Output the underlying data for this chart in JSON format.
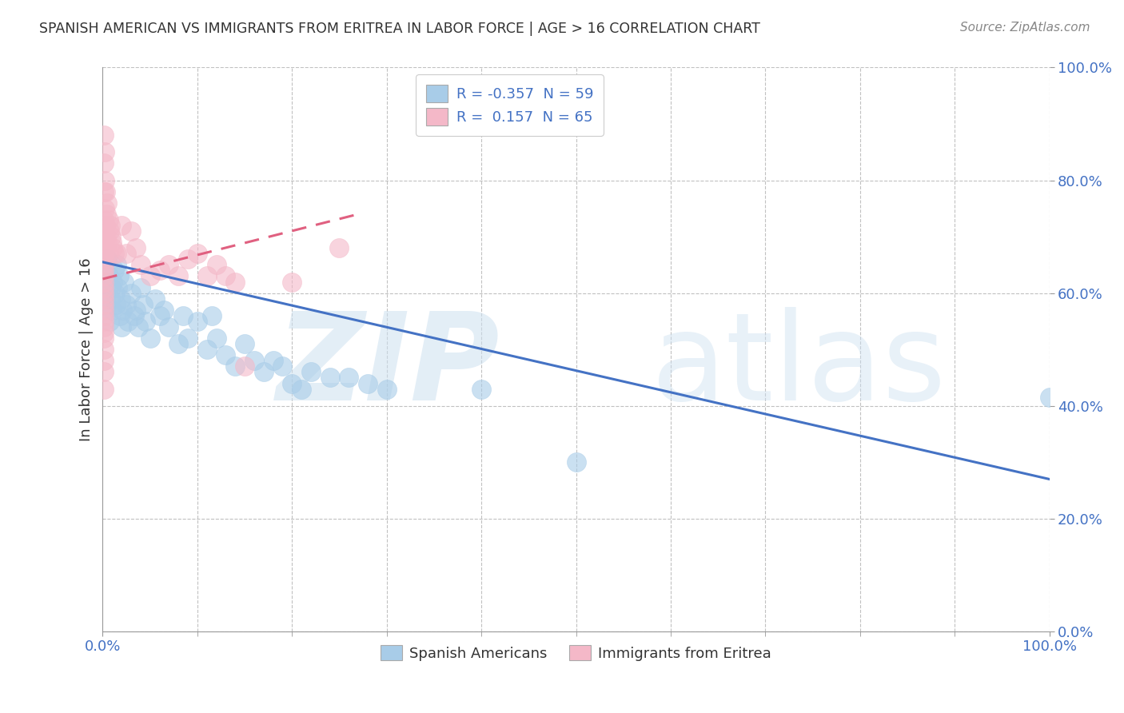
{
  "title": "SPANISH AMERICAN VS IMMIGRANTS FROM ERITREA IN LABOR FORCE | AGE > 16 CORRELATION CHART",
  "source": "Source: ZipAtlas.com",
  "ylabel": "In Labor Force | Age > 16",
  "xlabel": "",
  "legend1_label": "R = -0.357  N = 59",
  "legend2_label": "R =  0.157  N = 65",
  "legend_title1": "Spanish Americans",
  "legend_title2": "Immigrants from Eritrea",
  "blue_color": "#a8cce8",
  "pink_color": "#f4b8c8",
  "blue_line_color": "#4472c4",
  "pink_line_color": "#e06080",
  "blue_scatter": [
    [
      0.002,
      0.62
    ],
    [
      0.003,
      0.6
    ],
    [
      0.004,
      0.58
    ],
    [
      0.005,
      0.66
    ],
    [
      0.006,
      0.63
    ],
    [
      0.007,
      0.55
    ],
    [
      0.008,
      0.59
    ],
    [
      0.009,
      0.61
    ],
    [
      0.01,
      0.57
    ],
    [
      0.011,
      0.62
    ],
    [
      0.012,
      0.64
    ],
    [
      0.013,
      0.6
    ],
    [
      0.014,
      0.58
    ],
    [
      0.015,
      0.65
    ],
    [
      0.016,
      0.61
    ],
    [
      0.017,
      0.63
    ],
    [
      0.018,
      0.56
    ],
    [
      0.019,
      0.59
    ],
    [
      0.02,
      0.54
    ],
    [
      0.021,
      0.57
    ],
    [
      0.022,
      0.62
    ],
    [
      0.025,
      0.58
    ],
    [
      0.027,
      0.55
    ],
    [
      0.03,
      0.6
    ],
    [
      0.033,
      0.56
    ],
    [
      0.035,
      0.57
    ],
    [
      0.038,
      0.54
    ],
    [
      0.04,
      0.61
    ],
    [
      0.043,
      0.58
    ],
    [
      0.045,
      0.55
    ],
    [
      0.05,
      0.52
    ],
    [
      0.055,
      0.59
    ],
    [
      0.06,
      0.56
    ],
    [
      0.065,
      0.57
    ],
    [
      0.07,
      0.54
    ],
    [
      0.08,
      0.51
    ],
    [
      0.085,
      0.56
    ],
    [
      0.09,
      0.52
    ],
    [
      0.1,
      0.55
    ],
    [
      0.11,
      0.5
    ],
    [
      0.115,
      0.56
    ],
    [
      0.12,
      0.52
    ],
    [
      0.13,
      0.49
    ],
    [
      0.14,
      0.47
    ],
    [
      0.15,
      0.51
    ],
    [
      0.16,
      0.48
    ],
    [
      0.17,
      0.46
    ],
    [
      0.18,
      0.48
    ],
    [
      0.19,
      0.47
    ],
    [
      0.2,
      0.44
    ],
    [
      0.21,
      0.43
    ],
    [
      0.22,
      0.46
    ],
    [
      0.24,
      0.45
    ],
    [
      0.26,
      0.45
    ],
    [
      0.28,
      0.44
    ],
    [
      0.3,
      0.43
    ],
    [
      0.4,
      0.43
    ],
    [
      0.5,
      0.3
    ],
    [
      1.0,
      0.415
    ]
  ],
  "pink_scatter": [
    [
      0.001,
      0.88
    ],
    [
      0.001,
      0.83
    ],
    [
      0.001,
      0.78
    ],
    [
      0.001,
      0.73
    ],
    [
      0.001,
      0.7
    ],
    [
      0.001,
      0.69
    ],
    [
      0.001,
      0.68
    ],
    [
      0.001,
      0.67
    ],
    [
      0.001,
      0.66
    ],
    [
      0.001,
      0.65
    ],
    [
      0.001,
      0.64
    ],
    [
      0.001,
      0.63
    ],
    [
      0.001,
      0.62
    ],
    [
      0.001,
      0.61
    ],
    [
      0.001,
      0.6
    ],
    [
      0.001,
      0.59
    ],
    [
      0.001,
      0.58
    ],
    [
      0.001,
      0.57
    ],
    [
      0.001,
      0.56
    ],
    [
      0.001,
      0.55
    ],
    [
      0.001,
      0.54
    ],
    [
      0.001,
      0.53
    ],
    [
      0.001,
      0.52
    ],
    [
      0.001,
      0.5
    ],
    [
      0.001,
      0.48
    ],
    [
      0.001,
      0.46
    ],
    [
      0.001,
      0.43
    ],
    [
      0.002,
      0.85
    ],
    [
      0.002,
      0.8
    ],
    [
      0.002,
      0.75
    ],
    [
      0.002,
      0.7
    ],
    [
      0.003,
      0.78
    ],
    [
      0.003,
      0.72
    ],
    [
      0.003,
      0.68
    ],
    [
      0.004,
      0.74
    ],
    [
      0.004,
      0.7
    ],
    [
      0.005,
      0.76
    ],
    [
      0.005,
      0.69
    ],
    [
      0.006,
      0.73
    ],
    [
      0.006,
      0.67
    ],
    [
      0.007,
      0.71
    ],
    [
      0.008,
      0.72
    ],
    [
      0.009,
      0.7
    ],
    [
      0.01,
      0.69
    ],
    [
      0.011,
      0.68
    ],
    [
      0.012,
      0.67
    ],
    [
      0.015,
      0.67
    ],
    [
      0.02,
      0.72
    ],
    [
      0.025,
      0.67
    ],
    [
      0.03,
      0.71
    ],
    [
      0.035,
      0.68
    ],
    [
      0.04,
      0.65
    ],
    [
      0.05,
      0.63
    ],
    [
      0.06,
      0.64
    ],
    [
      0.07,
      0.65
    ],
    [
      0.08,
      0.63
    ],
    [
      0.09,
      0.66
    ],
    [
      0.1,
      0.67
    ],
    [
      0.11,
      0.63
    ],
    [
      0.12,
      0.65
    ],
    [
      0.13,
      0.63
    ],
    [
      0.14,
      0.62
    ],
    [
      0.15,
      0.47
    ],
    [
      0.2,
      0.62
    ],
    [
      0.25,
      0.68
    ]
  ],
  "blue_trend_x": [
    0.0,
    1.0
  ],
  "blue_trend_y": [
    0.655,
    0.27
  ],
  "pink_trend_x": [
    0.0,
    0.27
  ],
  "pink_trend_y": [
    0.625,
    0.74
  ],
  "xlim": [
    0.0,
    1.0
  ],
  "ylim": [
    0.0,
    1.0
  ],
  "ytick_positions": [
    0.0,
    0.2,
    0.4,
    0.6,
    0.8,
    1.0
  ],
  "ytick_labels": [
    "0.0%",
    "20.0%",
    "40.0%",
    "60.0%",
    "80.0%",
    "100.0%"
  ],
  "xtick_left_label": "0.0%",
  "xtick_right_label": "100.0%",
  "background_color": "#ffffff",
  "grid_color": "#bbbbbb",
  "tick_color": "#4472c4",
  "watermark_zip": "ZIP",
  "watermark_atlas": "atlas"
}
